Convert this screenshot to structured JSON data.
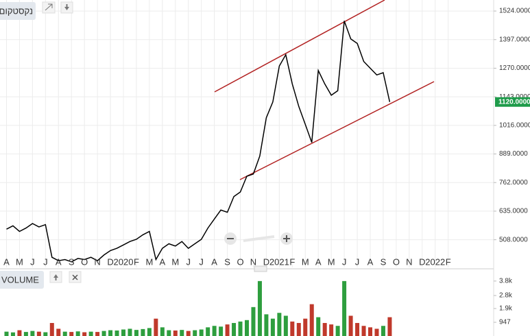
{
  "chart_data": [
    {
      "type": "line",
      "title": "נקסטקום",
      "color": "#000000",
      "x": [
        0,
        0.5,
        1,
        1.5,
        2,
        2.5,
        3,
        3.5,
        4,
        4.5,
        5,
        5.5,
        6,
        6.5,
        7,
        7.5,
        8,
        8.5,
        9,
        9.5,
        10,
        10.5,
        11,
        11.5,
        12,
        12.5,
        13,
        13.5,
        14,
        14.5,
        15,
        15.5,
        16,
        16.5,
        17,
        17.5,
        18,
        18.5,
        19,
        19.5,
        20,
        20.5,
        21,
        21.5,
        22,
        22.5,
        23,
        23.5,
        24,
        24.5,
        25,
        25.5,
        26,
        26.5,
        27,
        27.5,
        28,
        28.5,
        29,
        29.5
      ],
      "values": [
        555,
        570,
        545,
        560,
        580,
        565,
        575,
        430,
        415,
        420,
        410,
        425,
        420,
        430,
        415,
        440,
        460,
        470,
        485,
        500,
        510,
        530,
        545,
        420,
        470,
        490,
        480,
        500,
        470,
        490,
        510,
        560,
        600,
        640,
        630,
        700,
        720,
        790,
        800,
        880,
        1050,
        1120,
        1280,
        1330,
        1200,
        1100,
        1020,
        940,
        1260,
        1200,
        1150,
        1170,
        1480,
        1400,
        1380,
        1300,
        1270,
        1240,
        1250,
        1120
      ],
      "xlim": [
        -0.5,
        37.5
      ],
      "xticks": [
        {
          "value": 0,
          "label": "A"
        },
        {
          "value": 1,
          "label": "M"
        },
        {
          "value": 2,
          "label": "J"
        },
        {
          "value": 3,
          "label": "J"
        },
        {
          "value": 4,
          "label": "A"
        },
        {
          "value": 5,
          "label": "S"
        },
        {
          "value": 6,
          "label": "O"
        },
        {
          "value": 7,
          "label": "N"
        },
        {
          "value": 8,
          "label": "D"
        },
        {
          "value": 9,
          "label": "2020"
        },
        {
          "value": 10,
          "label": "F"
        },
        {
          "value": 11,
          "label": "M"
        },
        {
          "value": 12,
          "label": "A"
        },
        {
          "value": 13,
          "label": "M"
        },
        {
          "value": 14,
          "label": "J"
        },
        {
          "value": 15,
          "label": "J"
        },
        {
          "value": 16,
          "label": "A"
        },
        {
          "value": 17,
          "label": "S"
        },
        {
          "value": 18,
          "label": "O"
        },
        {
          "value": 19,
          "label": "N"
        },
        {
          "value": 20,
          "label": "D"
        },
        {
          "value": 21,
          "label": "2021"
        },
        {
          "value": 22,
          "label": "F"
        },
        {
          "value": 23,
          "label": "M"
        },
        {
          "value": 24,
          "label": "A"
        },
        {
          "value": 25,
          "label": "M"
        },
        {
          "value": 26,
          "label": "J"
        },
        {
          "value": 27,
          "label": "J"
        },
        {
          "value": 28,
          "label": "A"
        },
        {
          "value": 29,
          "label": "S"
        },
        {
          "value": 30,
          "label": "O"
        },
        {
          "value": 31,
          "label": "N"
        },
        {
          "value": 32,
          "label": "D"
        },
        {
          "value": 33,
          "label": "2022"
        },
        {
          "value": 34,
          "label": "F"
        }
      ],
      "ylim": [
        385,
        1573
      ],
      "yticks": [
        {
          "value": 508,
          "label": "508.0000"
        },
        {
          "value": 635,
          "label": "635.0000"
        },
        {
          "value": 762,
          "label": "762.0000"
        },
        {
          "value": 889,
          "label": "889.0000"
        },
        {
          "value": 1016,
          "label": "1016.0000"
        },
        {
          "value": 1143,
          "label": "1143.0000"
        },
        {
          "value": 1270,
          "label": "1270.0000"
        },
        {
          "value": 1397,
          "label": "1397.0000"
        },
        {
          "value": 1524,
          "label": "1524.0000"
        }
      ],
      "grid": true,
      "last_value": {
        "value": 1120,
        "label": "1120.0000"
      }
    },
    {
      "type": "bar",
      "title": "VOLUME",
      "up_color": "#2e9e3e",
      "down_color": "#c0392b",
      "x": [
        0,
        0.5,
        1,
        1.5,
        2,
        2.5,
        3,
        3.5,
        4,
        4.5,
        5,
        5.5,
        6,
        6.5,
        7,
        7.5,
        8,
        8.5,
        9,
        9.5,
        10,
        10.5,
        11,
        11.5,
        12,
        12.5,
        13,
        13.5,
        14,
        14.5,
        15,
        15.5,
        16,
        16.5,
        17,
        17.5,
        18,
        18.5,
        19,
        19.5,
        20,
        20.5,
        21,
        21.5,
        22,
        22.5,
        23,
        23.5,
        24,
        24.5,
        25,
        25.5,
        26,
        26.5,
        27,
        27.5,
        28,
        28.5,
        29,
        29.5
      ],
      "values": [
        300,
        250,
        400,
        280,
        350,
        300,
        260,
        900,
        500,
        300,
        280,
        320,
        260,
        300,
        280,
        350,
        400,
        380,
        450,
        500,
        420,
        480,
        550,
        1200,
        600,
        400,
        380,
        420,
        350,
        400,
        450,
        600,
        700,
        650,
        800,
        900,
        1000,
        1100,
        2000,
        3800,
        1500,
        1200,
        1600,
        1400,
        1000,
        900,
        1200,
        2200,
        1300,
        900,
        800,
        700,
        3800,
        1400,
        900,
        700,
        600,
        500,
        700,
        1300
      ],
      "xlim": [
        -0.5,
        37.5
      ],
      "ylim": [
        0,
        4600
      ],
      "yticks": [
        {
          "value": 947,
          "label": "947"
        },
        {
          "value": 1900,
          "label": "1.9k"
        },
        {
          "value": 2800,
          "label": "2.8k"
        },
        {
          "value": 3800,
          "label": "3.8k"
        }
      ]
    }
  ]
}
